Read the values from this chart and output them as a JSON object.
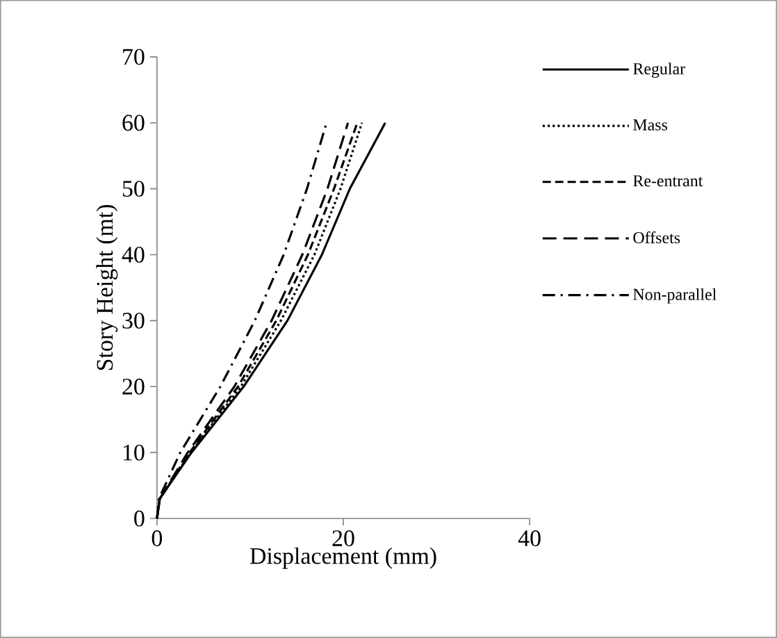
{
  "chart_data": {
    "type": "line",
    "xlabel": "Displacement (mm)",
    "ylabel": "Story Height (mt)",
    "xlim": [
      0,
      40
    ],
    "xticks": [
      0,
      20,
      40
    ],
    "ylim": [
      0,
      70
    ],
    "yticks": [
      0,
      10,
      20,
      30,
      40,
      50,
      60,
      70
    ],
    "grid": false,
    "legend": "right",
    "marker": "none",
    "series": [
      {
        "name": "Regular",
        "color": "#000000",
        "line_style": "solid",
        "x": [
          0,
          0.3,
          3.7,
          9.3,
          14.0,
          17.7,
          20.7,
          24.5
        ],
        "values": [
          0,
          3,
          10,
          20,
          30,
          40,
          50,
          60
        ]
      },
      {
        "name": "Mass",
        "color": "#000000",
        "line_style": "dotted",
        "x": [
          0,
          0.3,
          3.6,
          9.0,
          13.3,
          16.9,
          19.7,
          22.0
        ],
        "values": [
          0,
          3,
          10,
          20,
          30,
          40,
          50,
          60
        ]
      },
      {
        "name": "Re-entrant",
        "color": "#000000",
        "line_style": "dashed",
        "x": [
          0,
          0.3,
          3.5,
          8.7,
          12.8,
          16.2,
          19.0,
          21.5
        ],
        "values": [
          0,
          3,
          10,
          20,
          30,
          40,
          50,
          60
        ]
      },
      {
        "name": "Offsets",
        "color": "#000000",
        "line_style": "long dashed",
        "x": [
          0,
          0.3,
          3.3,
          8.3,
          12.3,
          15.6,
          18.3,
          20.5
        ],
        "values": [
          0,
          3,
          10,
          20,
          30,
          40,
          50,
          60
        ]
      },
      {
        "name": "Non-parallel",
        "color": "#000000",
        "line_style": "dash dot",
        "x": [
          0,
          0.2,
          2.5,
          6.8,
          10.5,
          13.6,
          16.1,
          18.2
        ],
        "values": [
          0,
          3,
          10,
          20,
          30,
          40,
          50,
          60
        ]
      }
    ]
  }
}
